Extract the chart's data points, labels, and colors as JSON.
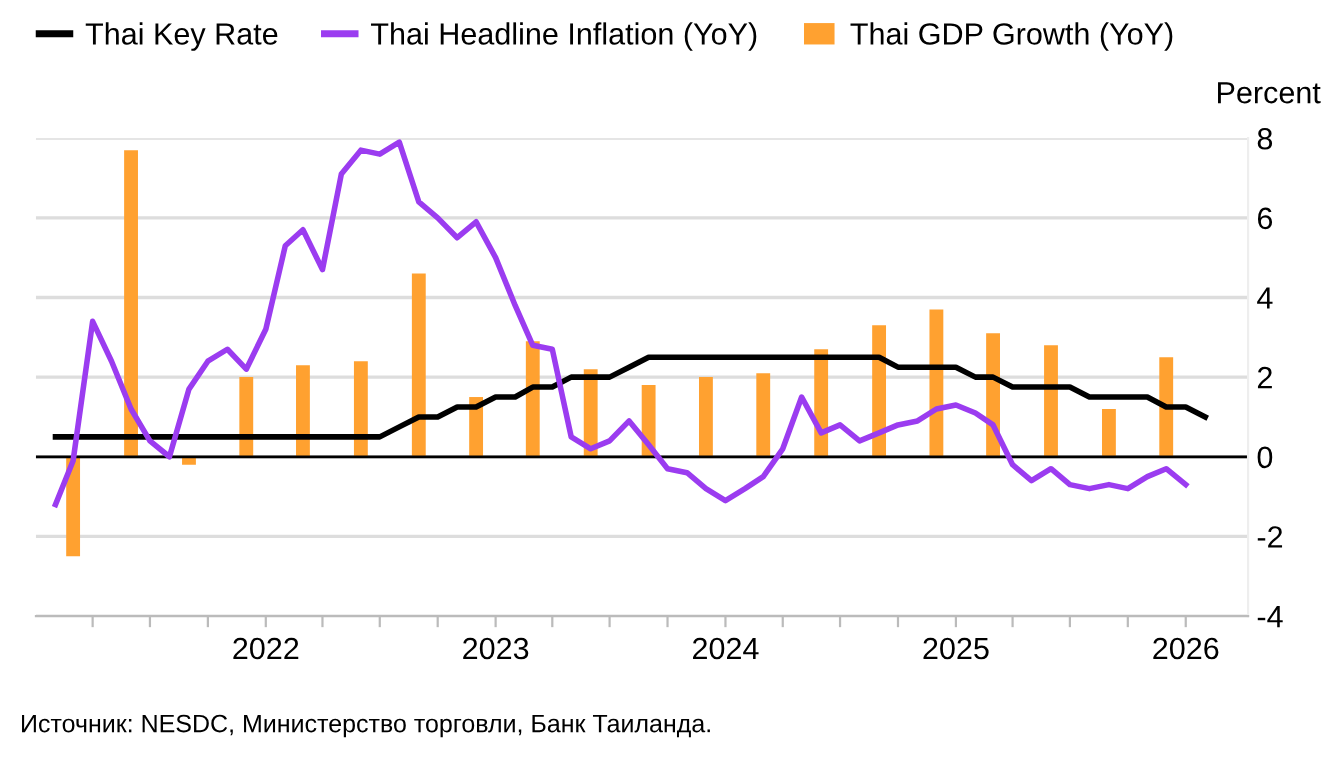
{
  "chart_data": {
    "type": "line",
    "ylabel": "Percent",
    "annotations": [
      "Источник: NESDC, Министерство торговли, Банк Таиланда."
    ],
    "xlim": [
      "2021-01-01",
      "2026-04-10"
    ],
    "xticks": [
      {
        "value": "2021-04",
        "label": null
      },
      {
        "value": "2021-07",
        "label": null
      },
      {
        "value": "2021-10",
        "label": null
      },
      {
        "value": "2022-01",
        "label": "2022"
      },
      {
        "value": "2022-04",
        "label": null
      },
      {
        "value": "2022-07",
        "label": null
      },
      {
        "value": "2022-10",
        "label": null
      },
      {
        "value": "2023-01",
        "label": "2023"
      },
      {
        "value": "2023-04",
        "label": null
      },
      {
        "value": "2023-07",
        "label": null
      },
      {
        "value": "2023-10",
        "label": null
      },
      {
        "value": "2024-01",
        "label": "2024"
      },
      {
        "value": "2024-04",
        "label": null
      },
      {
        "value": "2024-07",
        "label": null
      },
      {
        "value": "2024-10",
        "label": null
      },
      {
        "value": "2025-01",
        "label": "2025"
      },
      {
        "value": "2025-04",
        "label": null
      },
      {
        "value": "2025-07",
        "label": null
      },
      {
        "value": "2025-10",
        "label": null
      },
      {
        "value": "2026-01",
        "label": "2026"
      }
    ],
    "ylim": [
      -4,
      8
    ],
    "yticks": [
      -4,
      -2,
      0,
      2,
      4,
      6,
      8
    ],
    "grid": "y",
    "legend": "top left",
    "ref_lines": [
      {
        "axis": "y",
        "value": 0,
        "color": "#000000"
      }
    ],
    "series": [
      {
        "name": "Thai Key Rate",
        "color": "#000000",
        "x": [
          "2021-02",
          "2021-03",
          "2021-04",
          "2021-05",
          "2021-06",
          "2021-07",
          "2021-08",
          "2021-09",
          "2021-10",
          "2021-11",
          "2021-12",
          "2022-01",
          "2022-02",
          "2022-03",
          "2022-04",
          "2022-05",
          "2022-06",
          "2022-07",
          "2022-08",
          "2022-09",
          "2022-10",
          "2022-11",
          "2022-12",
          "2023-01",
          "2023-02",
          "2023-03",
          "2023-04",
          "2023-05",
          "2023-06",
          "2023-07",
          "2023-08",
          "2023-09",
          "2023-10",
          "2023-11",
          "2023-12",
          "2024-01",
          "2024-02",
          "2024-03",
          "2024-04",
          "2024-05",
          "2024-06",
          "2024-07",
          "2024-08",
          "2024-09",
          "2024-10",
          "2024-11",
          "2024-12",
          "2025-01",
          "2025-02",
          "2025-03",
          "2025-04",
          "2025-05",
          "2025-06",
          "2025-07",
          "2025-08",
          "2025-09",
          "2025-10",
          "2025-11",
          "2025-12",
          "2026-01",
          "2026-02"
        ],
        "values": [
          0.5,
          0.5,
          0.5,
          0.5,
          0.5,
          0.5,
          0.5,
          0.5,
          0.5,
          0.5,
          0.5,
          0.5,
          0.5,
          0.5,
          0.5,
          0.5,
          0.5,
          0.5,
          0.75,
          1.0,
          1.0,
          1.25,
          1.25,
          1.5,
          1.5,
          1.75,
          1.75,
          2.0,
          2.0,
          2.0,
          2.25,
          2.5,
          2.5,
          2.5,
          2.5,
          2.5,
          2.5,
          2.5,
          2.5,
          2.5,
          2.5,
          2.5,
          2.5,
          2.5,
          2.25,
          2.25,
          2.25,
          2.25,
          2.0,
          2.0,
          1.75,
          1.75,
          1.75,
          1.75,
          1.5,
          1.5,
          1.5,
          1.5,
          1.25,
          1.25,
          1.0
        ]
      },
      {
        "name": "Thai Headline Inflation (YoY)",
        "color": "#9b3cf0",
        "x": [
          "2021-02",
          "2021-03",
          "2021-04",
          "2021-05",
          "2021-06",
          "2021-07",
          "2021-08",
          "2021-09",
          "2021-10",
          "2021-11",
          "2021-12",
          "2022-01",
          "2022-02",
          "2022-03",
          "2022-04",
          "2022-05",
          "2022-06",
          "2022-07",
          "2022-08",
          "2022-09",
          "2022-10",
          "2022-11",
          "2022-12",
          "2023-01",
          "2023-02",
          "2023-03",
          "2023-04",
          "2023-05",
          "2023-06",
          "2023-07",
          "2023-08",
          "2023-09",
          "2023-10",
          "2023-11",
          "2023-12",
          "2024-01",
          "2024-02",
          "2024-03",
          "2024-04",
          "2024-05",
          "2024-06",
          "2024-07",
          "2024-08",
          "2024-09",
          "2024-10",
          "2024-11",
          "2024-12",
          "2025-01",
          "2025-02",
          "2025-03",
          "2025-04",
          "2025-05",
          "2025-06",
          "2025-07",
          "2025-08",
          "2025-09",
          "2025-10",
          "2025-11",
          "2025-12",
          "2026-01"
        ],
        "values": [
          -1.2,
          -0.1,
          3.4,
          2.4,
          1.2,
          0.4,
          0.0,
          1.7,
          2.4,
          2.7,
          2.2,
          3.2,
          5.3,
          5.7,
          4.7,
          7.1,
          7.7,
          7.6,
          7.9,
          6.4,
          6.0,
          5.5,
          5.9,
          5.0,
          3.8,
          2.8,
          2.7,
          0.5,
          0.2,
          0.4,
          0.9,
          0.3,
          -0.3,
          -0.4,
          -0.8,
          -1.1,
          -0.8,
          -0.5,
          0.2,
          1.5,
          0.6,
          0.8,
          0.4,
          0.6,
          0.8,
          0.9,
          1.2,
          1.3,
          1.1,
          0.8,
          -0.2,
          -0.6,
          -0.3,
          -0.7,
          -0.8,
          -0.7,
          -0.8,
          -0.5,
          -0.3,
          -0.7
        ]
      },
      {
        "name": "Thai GDP Growth (YoY)",
        "type": "bar",
        "color": "#ffa130",
        "x": [
          "2021-03",
          "2021-06",
          "2021-09",
          "2021-12",
          "2022-03",
          "2022-06",
          "2022-09",
          "2022-12",
          "2023-03",
          "2023-06",
          "2023-09",
          "2023-12",
          "2024-03",
          "2024-06",
          "2024-09",
          "2024-12",
          "2025-03",
          "2025-06",
          "2025-09",
          "2025-12"
        ],
        "values": [
          -2.5,
          7.7,
          -0.2,
          2.0,
          2.3,
          2.4,
          4.6,
          1.5,
          2.9,
          2.2,
          1.8,
          2.0,
          2.1,
          2.7,
          3.3,
          3.7,
          3.1,
          2.8,
          1.2,
          2.5
        ]
      }
    ]
  }
}
